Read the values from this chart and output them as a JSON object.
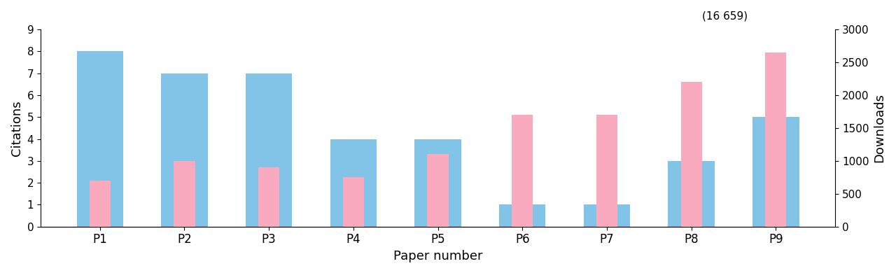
{
  "categories": [
    "P1",
    "P2",
    "P3",
    "P4",
    "P5",
    "P6",
    "P7",
    "P8",
    "P9"
  ],
  "citations": [
    8,
    7,
    7,
    4,
    4,
    1,
    1,
    3,
    5
  ],
  "downloads": [
    700,
    1000,
    900,
    750,
    1100,
    1700,
    1700,
    2200,
    2650
  ],
  "citation_color": "#82C4E8",
  "download_color": "#F9AABF",
  "citation_ylim": [
    0,
    9
  ],
  "download_ylim": [
    0,
    3000
  ],
  "citation_yticks": [
    0,
    1,
    2,
    3,
    4,
    5,
    6,
    7,
    8,
    9
  ],
  "download_yticks": [
    0,
    500,
    1000,
    1500,
    2000,
    2500,
    3000
  ],
  "xlabel": "Paper number",
  "ylabel_left": "Citations",
  "ylabel_right": "Downloads",
  "annotation_text": "(16 659)",
  "annotation_paper_idx": 8,
  "blue_bar_width": 0.55,
  "pink_bar_width": 0.25,
  "figsize": [
    12.8,
    3.9
  ],
  "dpi": 100,
  "bg_color": "#ffffff",
  "xlabel_fontsize": 13,
  "ylabel_fontsize": 13,
  "tick_fontsize": 11,
  "xtick_fontsize": 12,
  "annotation_fontsize": 11
}
